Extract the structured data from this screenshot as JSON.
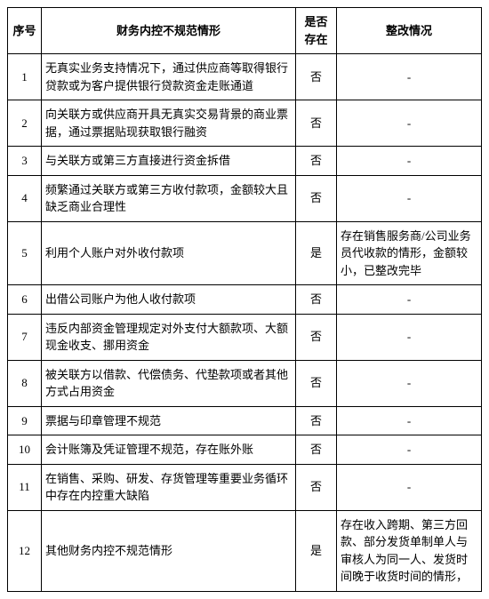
{
  "columns": {
    "num": "序号",
    "desc": "财务内控不规范情形",
    "exist": "是否存在",
    "fix": "整改情况"
  },
  "rows": [
    {
      "num": "1",
      "desc": "无真实业务支持情况下，通过供应商等取得银行贷款或为客户提供银行贷款资金走账通道",
      "exist": "否",
      "fix": "-"
    },
    {
      "num": "2",
      "desc": "向关联方或供应商开具无真实交易背景的商业票据，通过票据贴现获取银行融资",
      "exist": "否",
      "fix": "-"
    },
    {
      "num": "3",
      "desc": "与关联方或第三方直接进行资金拆借",
      "exist": "否",
      "fix": "-"
    },
    {
      "num": "4",
      "desc": "频繁通过关联方或第三方收付款项，金额较大且缺乏商业合理性",
      "exist": "否",
      "fix": "-"
    },
    {
      "num": "5",
      "desc": "利用个人账户对外收付款项",
      "exist": "是",
      "fix": "存在销售服务商/公司业务员代收款的情形，金额较小，已整改完毕"
    },
    {
      "num": "6",
      "desc": "出借公司账户为他人收付款项",
      "exist": "否",
      "fix": "-"
    },
    {
      "num": "7",
      "desc": "违反内部资金管理规定对外支付大额款项、大额现金收支、挪用资金",
      "exist": "否",
      "fix": "-"
    },
    {
      "num": "8",
      "desc": "被关联方以借款、代偿债务、代垫款项或者其他方式占用资金",
      "exist": "否",
      "fix": "-"
    },
    {
      "num": "9",
      "desc": "票据与印章管理不规范",
      "exist": "否",
      "fix": "-"
    },
    {
      "num": "10",
      "desc": "会计账簿及凭证管理不规范，存在账外账",
      "exist": "否",
      "fix": "-"
    },
    {
      "num": "11",
      "desc": "在销售、采购、研发、存货管理等重要业务循环中存在内控重大缺陷",
      "exist": "否",
      "fix": "-"
    },
    {
      "num": "12",
      "desc": "其他财务内控不规范情形",
      "exist": "是",
      "fix": "存在收入跨期、第三方回款、部分发货单制单人与审核人为同一人、发货时间晚于收货时间的情形，"
    }
  ]
}
